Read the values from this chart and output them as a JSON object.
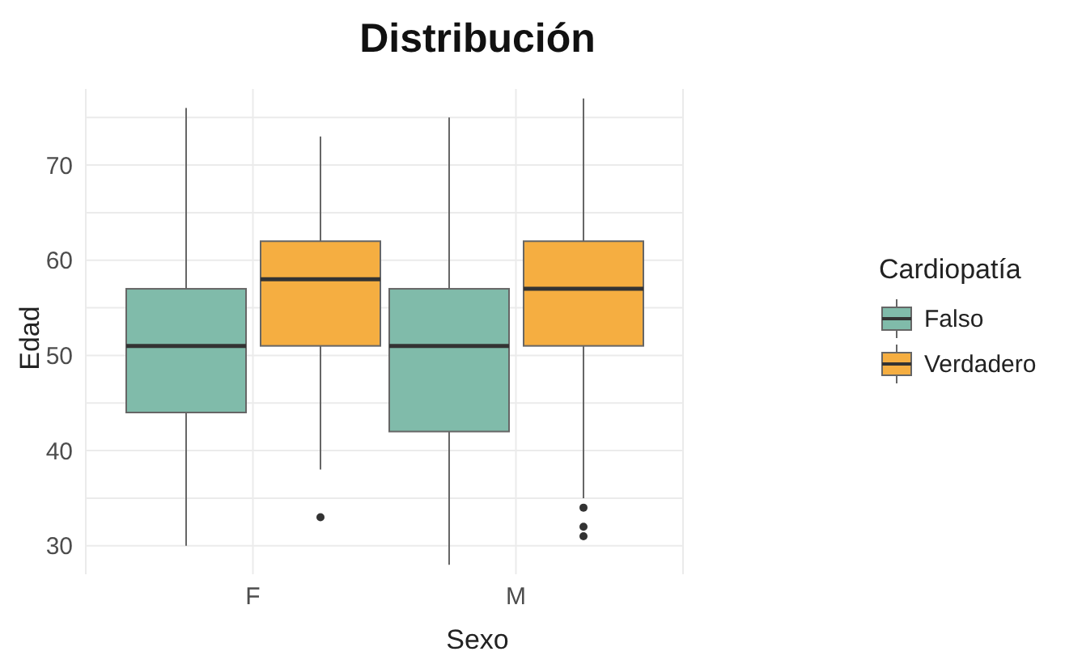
{
  "chart_data": {
    "type": "box",
    "title": "Distribución",
    "xlabel": "Sexo",
    "ylabel": "Edad",
    "legend_title": "Cardiopatía",
    "categories": [
      "F",
      "M"
    ],
    "series": [
      {
        "name": "Falso",
        "color": "#80bbaa",
        "boxes": [
          {
            "low": 30,
            "q1": 44,
            "median": 51,
            "q3": 57,
            "high": 76
          },
          {
            "low": 28,
            "q1": 42,
            "median": 51,
            "q3": 57,
            "high": 75
          }
        ]
      },
      {
        "name": "Verdadero",
        "color": "#f5ae41",
        "boxes": [
          {
            "low": 38,
            "q1": 51,
            "median": 58,
            "q3": 62,
            "high": 73,
            "outliers": [
              33
            ]
          },
          {
            "low": 35,
            "q1": 51,
            "median": 57,
            "q3": 62,
            "high": 77,
            "outliers": [
              34,
              32,
              31
            ]
          }
        ]
      }
    ],
    "ylim": [
      27,
      78
    ],
    "yticks": [
      30,
      {
        "value": 35,
        "label": null
      },
      40,
      {
        "value": 45,
        "label": null
      },
      50,
      {
        "value": 55,
        "label": null
      },
      60,
      {
        "value": 65,
        "label": null
      },
      70,
      {
        "value": 75,
        "label": null
      }
    ],
    "grid": true,
    "legend": "right"
  }
}
